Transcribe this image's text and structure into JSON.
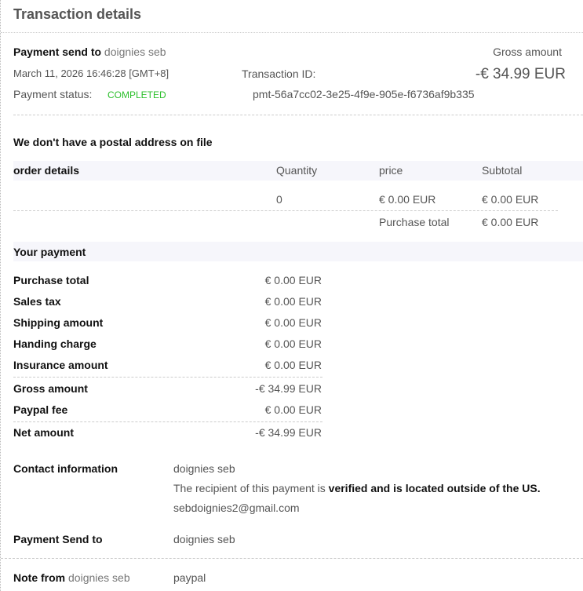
{
  "title": "Transaction details",
  "header": {
    "send_label": "Payment send to",
    "send_name": "doignies seb",
    "datetime": "March 11, 2026 16:46:28 [GMT+8]",
    "status_label": "Payment status:",
    "status": "COMPLETED",
    "txn_label": "Transaction ID:",
    "txn_id": "pmt-56a7cc02-3e25-4f9e-905e-f6736af9b335",
    "gross_label": "Gross amount",
    "gross_value": "-€ 34.99 EUR",
    "status_color": "#2bbf2b"
  },
  "postal": "We don't have a postal address on file",
  "order": {
    "headers": [
      "order details",
      "Quantity",
      "price",
      "Subtotal"
    ],
    "row": {
      "quantity": "0",
      "price": "€ 0.00 EUR",
      "subtotal": "€ 0.00 EUR"
    },
    "total_label": "Purchase total",
    "total_value": "€ 0.00 EUR"
  },
  "payment": {
    "heading": "Your payment",
    "rows": [
      {
        "label": "Purchase total",
        "value": "€ 0.00 EUR"
      },
      {
        "label": "Sales tax",
        "value": "€ 0.00 EUR"
      },
      {
        "label": "Shipping amount",
        "value": "€ 0.00 EUR"
      },
      {
        "label": "Handing charge",
        "value": "€ 0.00 EUR"
      },
      {
        "label": "Insurance amount",
        "value": "€ 0.00 EUR"
      },
      {
        "label": "Gross amount",
        "value": "-€ 34.99 EUR"
      },
      {
        "label": "Paypal fee",
        "value": "€ 0.00 EUR"
      },
      {
        "label": "Net amount",
        "value": "-€ 34.99 EUR"
      }
    ]
  },
  "contact": {
    "label": "Contact information",
    "name": "doignies seb",
    "note_prefix": "The recipient of this payment is ",
    "note_bold": "verified and is located outside of the US.",
    "email": "sebdoignies2@gmail.com"
  },
  "send_to": {
    "label": "Payment Send to",
    "value": "doignies seb"
  },
  "note": {
    "label": "Note from",
    "name": "doignies seb",
    "value": "paypal"
  }
}
